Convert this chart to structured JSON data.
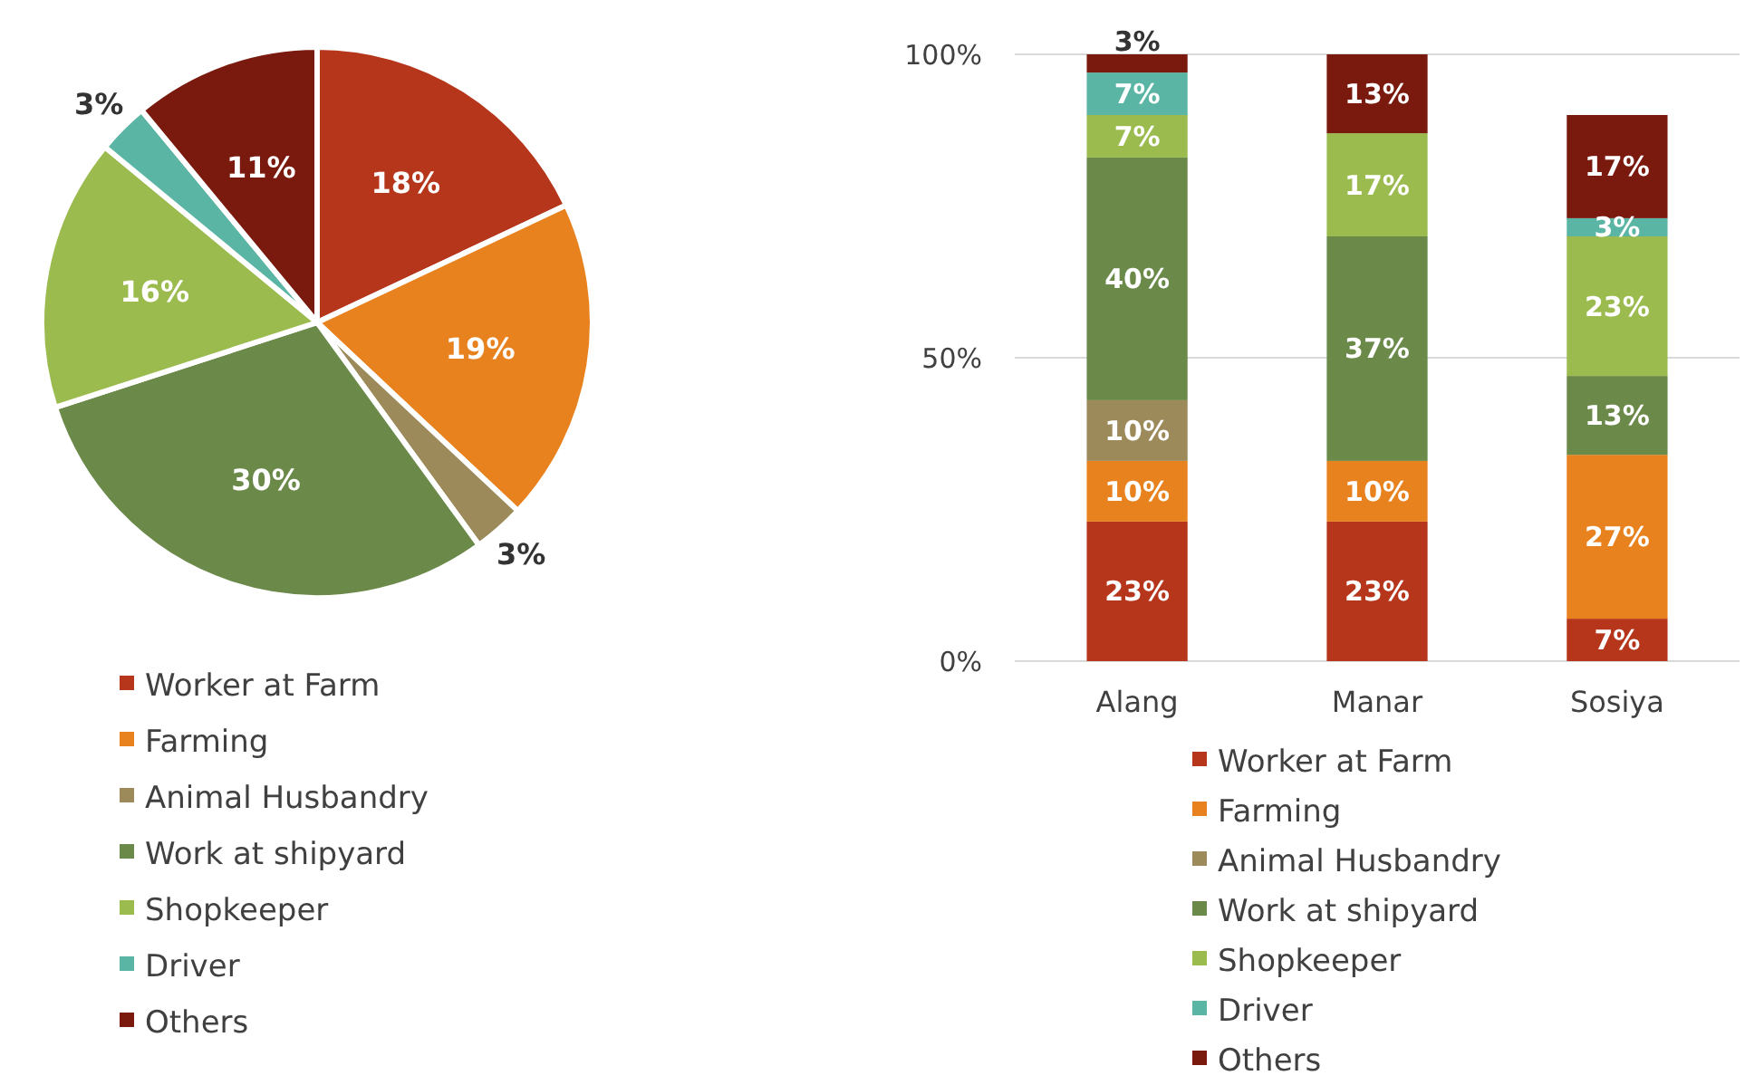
{
  "chart_data": [
    {
      "type": "pie",
      "categories": [
        "Worker at Farm",
        "Farming",
        "Animal Husbandry",
        "Work at shipyard",
        "Shopkeeper",
        "Driver",
        "Others"
      ],
      "values": [
        18,
        19,
        3,
        30,
        16,
        3,
        11
      ],
      "value_labels": [
        "18%",
        "19%",
        "3%",
        "30%",
        "16%",
        "3%",
        "11%"
      ],
      "colors": [
        "#b5361b",
        "#e8821e",
        "#9c8a5a",
        "#6b8a4a",
        "#9bbb4f",
        "#5bb5a4",
        "#7a1a0e"
      ],
      "legend": "bottom"
    },
    {
      "type": "bar",
      "stacked": true,
      "categories": [
        "Alang",
        "Manar",
        "Sosiya"
      ],
      "ylim": [
        0,
        100
      ],
      "yticks": [
        {
          "value": 0,
          "label": "0%"
        },
        {
          "value": 50,
          "label": "50%"
        },
        {
          "value": 100,
          "label": "100%"
        }
      ],
      "grid": "y",
      "legend": "bottom",
      "series": [
        {
          "name": "Worker at Farm",
          "color": "#b5361b",
          "values": [
            23,
            23,
            7
          ],
          "value_labels": [
            "23%",
            "23%",
            "7%"
          ]
        },
        {
          "name": "Farming",
          "color": "#e8821e",
          "values": [
            10,
            10,
            27
          ],
          "value_labels": [
            "10%",
            "10%",
            "27%"
          ]
        },
        {
          "name": "Animal Husbandry",
          "color": "#9c8a5a",
          "values": [
            10,
            null,
            null
          ],
          "value_labels": [
            "10%",
            null,
            null
          ]
        },
        {
          "name": "Work at shipyard",
          "color": "#6b8a4a",
          "values": [
            40,
            37,
            13
          ],
          "value_labels": [
            "40%",
            "37%",
            "13%"
          ]
        },
        {
          "name": "Shopkeeper",
          "color": "#9bbb4f",
          "values": [
            7,
            17,
            23
          ],
          "value_labels": [
            "7%",
            "17%",
            "23%"
          ]
        },
        {
          "name": "Driver",
          "color": "#5bb5a4",
          "values": [
            7,
            null,
            3
          ],
          "value_labels": [
            "7%",
            null,
            "3%"
          ]
        },
        {
          "name": "Others",
          "color": "#7a1a0e",
          "values": [
            3,
            13,
            17
          ],
          "value_labels": [
            "3%",
            "13%",
            "17%"
          ]
        }
      ]
    }
  ]
}
